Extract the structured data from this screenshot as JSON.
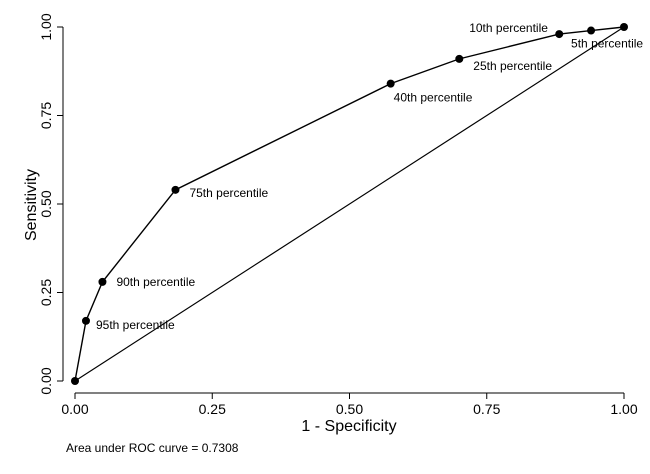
{
  "chart_data": {
    "type": "line",
    "xlabel": "1 - Specificity",
    "ylabel": "Sensitivity",
    "xlim": [
      0,
      1
    ],
    "ylim": [
      0,
      1
    ],
    "x_ticks": [
      "0.00",
      "0.25",
      "0.50",
      "0.75",
      "1.00"
    ],
    "y_ticks": [
      "0.00",
      "0.25",
      "0.50",
      "0.75",
      "1.00"
    ],
    "grid": false,
    "legend": "none",
    "series": [
      {
        "type": "line",
        "markers": true,
        "x": [
          0,
          0.02,
          0.05,
          0.183,
          0.575,
          0.7,
          0.882,
          0.94,
          1.0
        ],
        "y": [
          0,
          0.17,
          0.28,
          0.54,
          0.84,
          0.91,
          0.98,
          0.99,
          1.0
        ],
        "labels": [
          "",
          "95th percentile",
          "90th percentile",
          "75th percentile",
          "40th percentile",
          "25th percentile",
          "10th percentile",
          "5th percentile",
          ""
        ]
      },
      {
        "type": "line",
        "markers": false,
        "x": [
          0,
          1
        ],
        "y": [
          0,
          1
        ]
      }
    ],
    "annotation": "Area under ROC curve = 0.7308"
  },
  "colors": {
    "line": "#000000",
    "marker": "#000000",
    "background": "#ffffff"
  }
}
